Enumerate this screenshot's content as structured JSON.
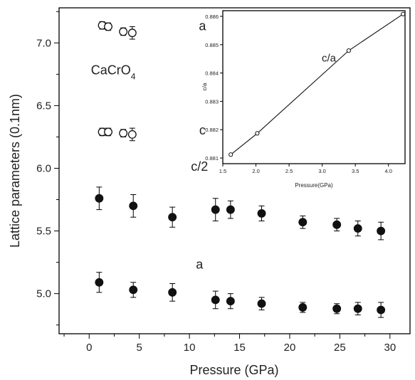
{
  "chart_data": [
    {
      "type": "scatter",
      "xlabel": "Pressure (GPa)",
      "ylabel": "Lattice parameters (0.1nm)",
      "xlim": [
        -3,
        32
      ],
      "ylim": [
        4.68,
        7.28
      ],
      "xticks": [
        "0",
        "5",
        "10",
        "15",
        "20",
        "25",
        "30"
      ],
      "yticks": [
        "5.0",
        "5.5",
        "6.0",
        "6.5",
        "7.0"
      ],
      "annotations": [
        {
          "id": "a-open",
          "text": "a",
          "x": 11.3,
          "y": 7.1
        },
        {
          "id": "compound",
          "text": "CaCrO",
          "subscript": "4",
          "x": 2.4,
          "y": 6.75
        },
        {
          "id": "c-open",
          "text": "c",
          "x": 11.3,
          "y": 6.27
        },
        {
          "id": "c-half",
          "text": "c/2",
          "x": 11.0,
          "y": 5.98
        },
        {
          "id": "a-filled",
          "text": "a",
          "x": 11.0,
          "y": 5.2
        }
      ],
      "series": [
        {
          "marker": "open",
          "points": [
            {
              "x": 1.3,
              "y": 7.14,
              "err": 0.03
            },
            {
              "x": 1.9,
              "y": 7.13,
              "err": 0.03
            },
            {
              "x": 3.4,
              "y": 7.09,
              "err": 0.03
            },
            {
              "x": 4.3,
              "y": 7.08,
              "err": 0.05
            }
          ]
        },
        {
          "marker": "open",
          "points": [
            {
              "x": 1.3,
              "y": 6.29,
              "err": 0.03
            },
            {
              "x": 1.9,
              "y": 6.29,
              "err": 0.03
            },
            {
              "x": 3.4,
              "y": 6.28,
              "err": 0.03
            },
            {
              "x": 4.3,
              "y": 6.27,
              "err": 0.05
            }
          ]
        },
        {
          "marker": "filled",
          "points": [
            {
              "x": 1.0,
              "y": 5.76,
              "err": 0.09
            },
            {
              "x": 4.4,
              "y": 5.7,
              "err": 0.09
            },
            {
              "x": 8.3,
              "y": 5.61,
              "err": 0.08
            },
            {
              "x": 12.6,
              "y": 5.67,
              "err": 0.09
            },
            {
              "x": 14.1,
              "y": 5.67,
              "err": 0.07
            },
            {
              "x": 17.2,
              "y": 5.64,
              "err": 0.06
            },
            {
              "x": 21.3,
              "y": 5.57,
              "err": 0.05
            },
            {
              "x": 24.7,
              "y": 5.55,
              "err": 0.05
            },
            {
              "x": 26.8,
              "y": 5.52,
              "err": 0.06
            },
            {
              "x": 29.1,
              "y": 5.5,
              "err": 0.07
            }
          ]
        },
        {
          "marker": "filled",
          "points": [
            {
              "x": 1.0,
              "y": 5.09,
              "err": 0.08
            },
            {
              "x": 4.4,
              "y": 5.03,
              "err": 0.06
            },
            {
              "x": 8.3,
              "y": 5.01,
              "err": 0.07
            },
            {
              "x": 12.6,
              "y": 4.95,
              "err": 0.07
            },
            {
              "x": 14.1,
              "y": 4.94,
              "err": 0.06
            },
            {
              "x": 17.2,
              "y": 4.92,
              "err": 0.05
            },
            {
              "x": 21.3,
              "y": 4.89,
              "err": 0.04
            },
            {
              "x": 24.7,
              "y": 4.88,
              "err": 0.04
            },
            {
              "x": 26.8,
              "y": 4.88,
              "err": 0.05
            },
            {
              "x": 29.1,
              "y": 4.87,
              "err": 0.06
            }
          ]
        }
      ]
    },
    {
      "type": "line",
      "xlabel": "Pressure(GPa)",
      "ylabel": "c/a",
      "xlim": [
        1.5,
        4.25
      ],
      "ylim": [
        0.8808,
        0.8862
      ],
      "xticks": [
        "1.5",
        "2.0",
        "2.5",
        "3.0",
        "3.5",
        "4.0"
      ],
      "yticks": [
        "0.881",
        "0.882",
        "0.883",
        "0.884",
        "0.885",
        "0.886"
      ],
      "annotation": {
        "text": "c/a",
        "x": 3.1,
        "y": 0.8844
      },
      "series": [
        {
          "marker": "open",
          "points": [
            {
              "x": 1.62,
              "y": 0.88112
            },
            {
              "x": 2.02,
              "y": 0.88187
            },
            {
              "x": 3.4,
              "y": 0.88479
            },
            {
              "x": 4.22,
              "y": 0.88608
            }
          ]
        }
      ]
    }
  ]
}
